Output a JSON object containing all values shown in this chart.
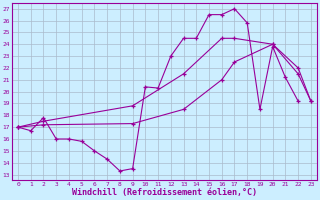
{
  "background_color": "#cceeff",
  "line_color": "#990099",
  "grid_color": "#aabbcc",
  "xlabel": "Windchill (Refroidissement éolien,°C)",
  "xlabel_color": "#990099",
  "xlabel_fontsize": 6,
  "ylabel_ticks": [
    13,
    14,
    15,
    16,
    17,
    18,
    19,
    20,
    21,
    22,
    23,
    24,
    25,
    26,
    27
  ],
  "xlabel_ticks": [
    0,
    1,
    2,
    3,
    4,
    5,
    6,
    7,
    8,
    9,
    10,
    11,
    12,
    13,
    14,
    15,
    16,
    17,
    18,
    19,
    20,
    21,
    22,
    23
  ],
  "xlim": [
    -0.5,
    23.5
  ],
  "ylim": [
    12.5,
    27.5
  ],
  "line1_x": [
    0,
    1,
    2,
    3,
    4,
    5,
    6,
    7,
    8,
    9,
    10,
    11,
    12,
    13,
    14,
    15,
    16,
    17,
    18,
    19,
    20,
    21,
    22
  ],
  "line1_y": [
    17.0,
    16.7,
    17.8,
    16.0,
    16.0,
    15.8,
    15.0,
    14.3,
    13.3,
    13.5,
    20.4,
    20.3,
    23.0,
    24.5,
    24.5,
    26.5,
    26.5,
    27.0,
    25.8,
    18.5,
    23.8,
    21.2,
    19.2
  ],
  "line2_x": [
    0,
    2,
    9,
    13,
    16,
    17,
    20,
    22,
    23
  ],
  "line2_y": [
    17.0,
    17.5,
    18.8,
    21.5,
    24.5,
    24.5,
    24.0,
    21.5,
    19.2
  ],
  "line3_x": [
    0,
    2,
    9,
    13,
    16,
    17,
    20,
    22,
    23
  ],
  "line3_y": [
    17.0,
    17.2,
    17.3,
    18.5,
    21.0,
    22.5,
    24.0,
    22.0,
    19.2
  ]
}
